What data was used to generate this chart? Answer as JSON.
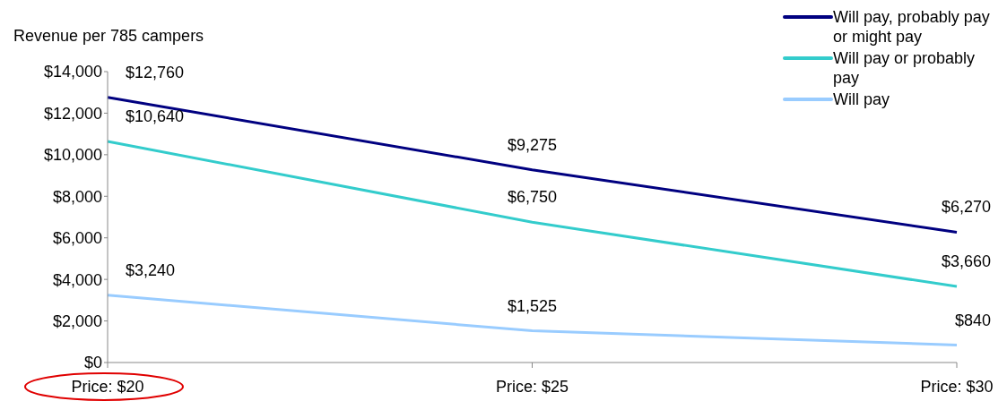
{
  "chart_data": {
    "type": "line",
    "ylabel": "Revenue per 785 campers",
    "categories": [
      "Price: $20",
      "Price: $25",
      "Price: $30"
    ],
    "series": [
      {
        "name": "Will pay, probably pay or might pay",
        "color": "#000080",
        "values": [
          12760,
          9275,
          6270
        ],
        "value_labels": [
          "$12,760",
          "$9,275",
          "$6,270"
        ]
      },
      {
        "name": "Will pay or probably pay",
        "color": "#33cccc",
        "values": [
          10640,
          6750,
          3660
        ],
        "value_labels": [
          "$10,640",
          "$6,750",
          "$3,660"
        ]
      },
      {
        "name": "Will pay",
        "color": "#99ccff",
        "values": [
          3240,
          1525,
          840
        ],
        "value_labels": [
          "$3,240",
          "$1,525",
          "$840"
        ]
      }
    ],
    "ylim": [
      0,
      14000
    ],
    "yticks": [
      {
        "value": 0,
        "label": "$0"
      },
      {
        "value": 2000,
        "label": "$2,000"
      },
      {
        "value": 4000,
        "label": "$4,000"
      },
      {
        "value": 6000,
        "label": "$6,000"
      },
      {
        "value": 8000,
        "label": "$8,000"
      },
      {
        "value": 10000,
        "label": "$10,000"
      },
      {
        "value": 12000,
        "label": "$12,000"
      },
      {
        "value": 14000,
        "label": "$14,000"
      }
    ],
    "legend": "top right",
    "grid": false,
    "marker": "none",
    "line_style": "solid"
  }
}
